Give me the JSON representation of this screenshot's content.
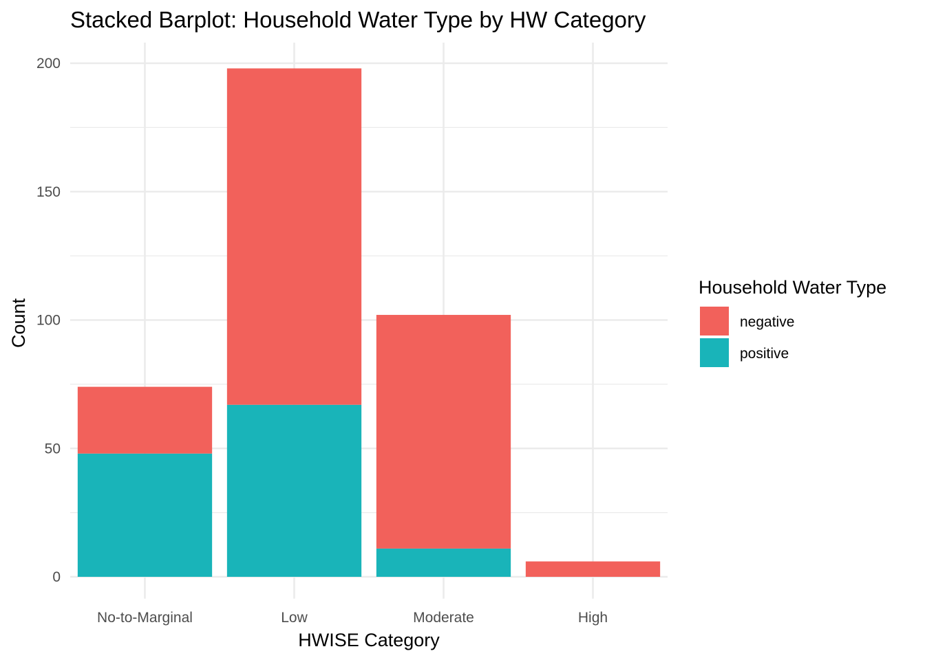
{
  "chart_data": {
    "type": "bar",
    "stacked": true,
    "title": "Stacked Barplot: Household Water Type by HW Category",
    "xlabel": "HWISE Category",
    "ylabel": "Count",
    "categories": [
      "No-to-Marginal",
      "Low",
      "Moderate",
      "High"
    ],
    "ylim": [
      0,
      210
    ],
    "yticks": [
      0,
      50,
      100,
      150,
      200
    ],
    "grid": true,
    "legend": {
      "title": "Household Water Type",
      "placement": "right"
    },
    "series": [
      {
        "name": "positive",
        "color": "#19b4b9",
        "values": [
          48,
          67,
          11,
          0
        ]
      },
      {
        "name": "negative",
        "color": "#f2615b",
        "values": [
          26,
          131,
          91,
          6
        ]
      }
    ],
    "legend_order": [
      "negative",
      "positive"
    ]
  }
}
